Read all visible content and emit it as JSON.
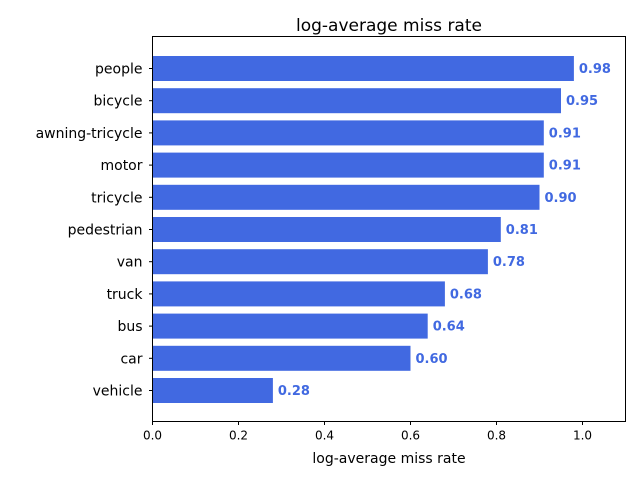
{
  "chart_data": {
    "type": "bar",
    "orientation": "horizontal",
    "title": "log-average miss rate",
    "xlabel": "log-average miss rate",
    "ylabel": "",
    "xlim": [
      0.0,
      1.1
    ],
    "x_ticks": [
      0.0,
      0.2,
      0.4,
      0.6,
      0.8,
      1.0
    ],
    "x_tick_labels": [
      "0.0",
      "0.2",
      "0.4",
      "0.6",
      "0.8",
      "1.0"
    ],
    "grid": false,
    "legend": "none",
    "bar_color": "#4169e1",
    "label_color": "#4169e1",
    "categories": [
      "people",
      "bicycle",
      "awning-tricycle",
      "motor",
      "tricycle",
      "pedestrian",
      "van",
      "truck",
      "bus",
      "car",
      "vehicle"
    ],
    "values": [
      0.98,
      0.95,
      0.91,
      0.91,
      0.9,
      0.81,
      0.78,
      0.68,
      0.64,
      0.6,
      0.28
    ],
    "value_labels": [
      "0.98",
      "0.95",
      "0.91",
      "0.91",
      "0.90",
      "0.81",
      "0.78",
      "0.68",
      "0.64",
      "0.60",
      "0.28"
    ]
  }
}
